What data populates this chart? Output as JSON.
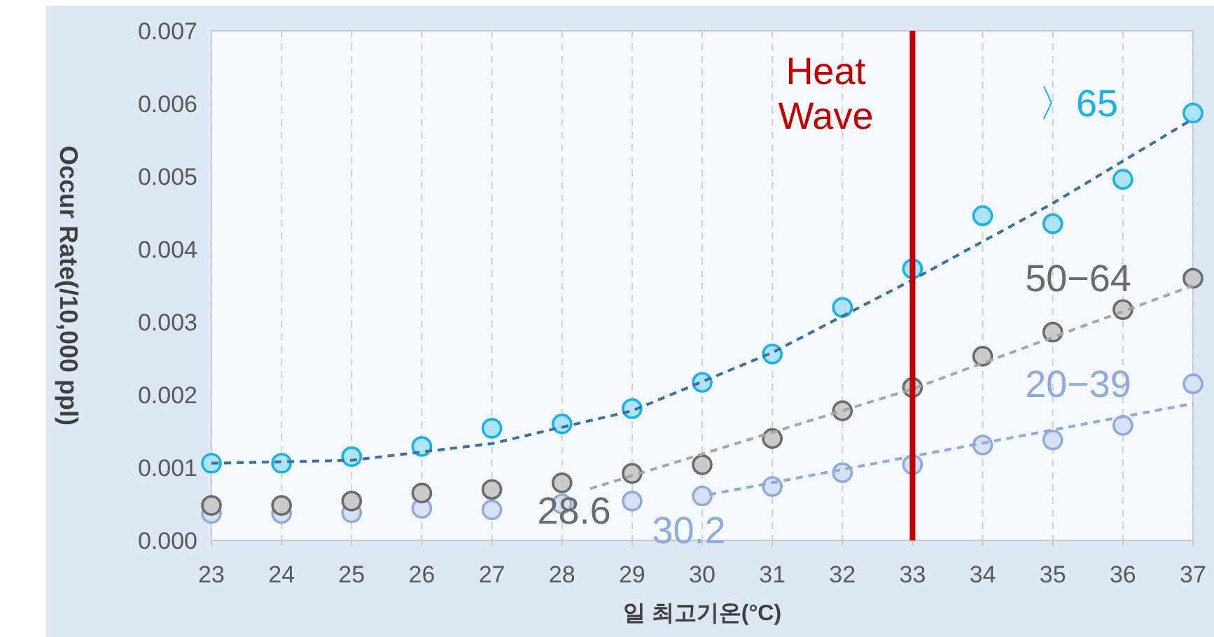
{
  "chart_data": {
    "type": "scatter",
    "xlabel": "일 최고기온(°C)",
    "ylabel": "Occur Rate(/10,000 ppl)",
    "x": [
      23,
      24,
      25,
      26,
      27,
      28,
      29,
      30,
      31,
      32,
      33,
      34,
      35,
      36,
      37
    ],
    "series": [
      {
        "name": "〉65",
        "color": "#1ab0e8",
        "values": [
          0.00106,
          0.00106,
          0.00115,
          0.00129,
          0.00154,
          0.0016,
          0.00181,
          0.00217,
          0.00256,
          0.0032,
          0.00373,
          0.00446,
          0.00435,
          0.00496,
          0.00587
        ]
      },
      {
        "name": "50−64",
        "color": "#6b6b6b",
        "values": [
          0.00048,
          0.00048,
          0.00054,
          0.00065,
          0.0007,
          0.00079,
          0.00092,
          0.00104,
          0.0014,
          0.00178,
          0.0021,
          0.00253,
          0.00286,
          0.00317,
          0.0036
        ]
      },
      {
        "name": "20−39",
        "color": "#8faadc",
        "values": [
          0.00037,
          0.00037,
          0.00038,
          0.00044,
          0.00042,
          0.0005,
          0.00054,
          0.00061,
          0.00074,
          0.00093,
          0.00104,
          0.00131,
          0.00138,
          0.00158,
          0.00215
        ]
      },
      {
        "type": "line",
        "marker": "none",
        "color": "#3d6fa0",
        "x": [
          23,
          25,
          27,
          29,
          31,
          33,
          35,
          37
        ],
        "values": [
          0.00106,
          0.0011,
          0.00133,
          0.00178,
          0.00258,
          0.00358,
          0.00463,
          0.00579
        ]
      },
      {
        "type": "line",
        "marker": "none",
        "color": "#a6a6a6",
        "x": [
          28.4,
          33,
          37
        ],
        "values": [
          0.00071,
          0.00208,
          0.0035
        ]
      },
      {
        "type": "line",
        "marker": "none",
        "color": "#8faadc",
        "x": [
          30.1,
          37
        ],
        "values": [
          0.00063,
          0.00188
        ]
      }
    ],
    "marker": "circle",
    "line_style": "dashed",
    "grid": "x",
    "xlim": [
      23,
      37
    ],
    "xticks": [
      23,
      24,
      25,
      26,
      27,
      28,
      29,
      30,
      31,
      32,
      33,
      34,
      35,
      36,
      37
    ],
    "ylim": [
      0,
      0.007
    ],
    "yticks": [
      {
        "value": 0,
        "label": "0.000"
      },
      {
        "value": 0.001,
        "label": "0.001"
      },
      {
        "value": 0.002,
        "label": "0.002"
      },
      {
        "value": 0.003,
        "label": "0.003"
      },
      {
        "value": 0.004,
        "label": "0.004"
      },
      {
        "value": 0.005,
        "label": "0.005"
      },
      {
        "value": 0.006,
        "label": "0.006"
      },
      {
        "value": 0.007,
        "label": "0.007"
      }
    ],
    "ref_lines": [
      {
        "axis": "x",
        "value": 33,
        "label": "Heat Wave",
        "color": "#c00000"
      }
    ],
    "annotations": [
      "28.6",
      "30.2"
    ]
  }
}
